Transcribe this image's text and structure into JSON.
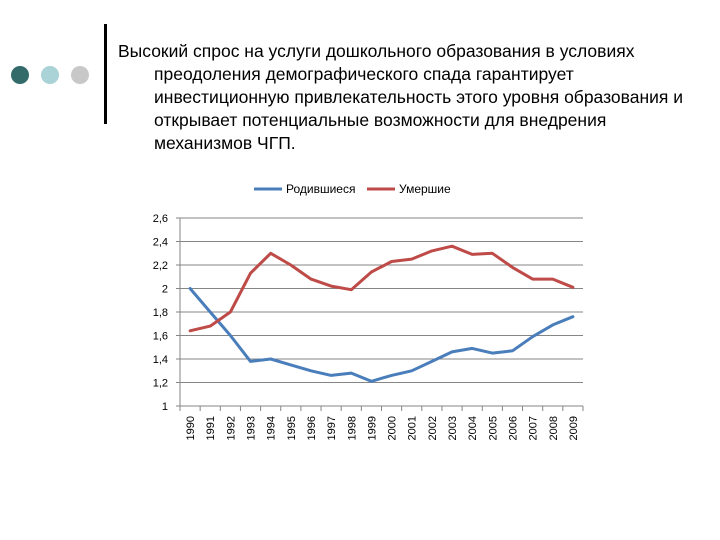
{
  "slide": {
    "text": "Высокий спрос на услуги дошкольного образования в условиях преодоления демографического спада гарантирует инвестиционную привлекательность этого уровня образования и открывает потенциальные возможности для внедрения механизмов ЧГП."
  },
  "colors": {
    "bullet_dark": "#336b6b",
    "bullet_light": "#a9d3d6",
    "bullet_grey": "#c8c8c8",
    "series_born": "#4a7ebb",
    "series_died": "#be4b48",
    "axis": "#868686"
  },
  "chart_data": {
    "type": "line",
    "x": [
      "1990",
      "1991",
      "1992",
      "1993",
      "1994",
      "1995",
      "1996",
      "1997",
      "1998",
      "1999",
      "2000",
      "2001",
      "2002",
      "2003",
      "2004",
      "2005",
      "2006",
      "2007",
      "2008",
      "2009"
    ],
    "series": [
      {
        "name": "Родившиеся",
        "color": "#4a7ebb",
        "values": [
          2.0,
          1.8,
          1.6,
          1.38,
          1.4,
          1.35,
          1.3,
          1.26,
          1.28,
          1.21,
          1.26,
          1.3,
          1.38,
          1.46,
          1.49,
          1.45,
          1.47,
          1.59,
          1.69,
          1.76
        ]
      },
      {
        "name": "Умершие",
        "color": "#be4b48",
        "values": [
          1.64,
          1.68,
          1.8,
          2.13,
          2.3,
          2.2,
          2.08,
          2.02,
          1.99,
          2.14,
          2.23,
          2.25,
          2.32,
          2.36,
          2.29,
          2.3,
          2.18,
          2.08,
          2.08,
          2.01
        ]
      }
    ],
    "y_ticks": [
      "2,6",
      "2,4",
      "2,2",
      "2",
      "1,8",
      "1,6",
      "1,4",
      "1,2",
      "1"
    ],
    "ylim": [
      1,
      2.6
    ],
    "legend_position": "top",
    "grid": false,
    "title": "",
    "xlabel": "",
    "ylabel": ""
  }
}
